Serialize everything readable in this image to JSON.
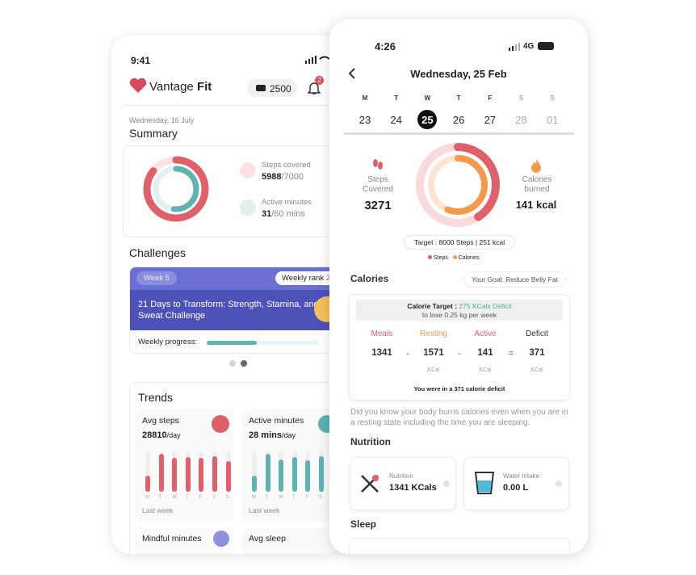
{
  "left": {
    "status_time": "9:41",
    "brand": {
      "name": "Vantage",
      "bold": "Fit"
    },
    "coins": "2500",
    "notifications": "2",
    "date": "Wednesday, 16 July",
    "summary_title": "Summary",
    "steps_label": "Steps covered",
    "steps_value": 5988,
    "steps_goal": {
      "value": 7000,
      "label": "/7000"
    },
    "active_label": "Active minutes",
    "active_value": 31,
    "active_goal": {
      "value": 60,
      "label": "/60 mins"
    },
    "challenges_title": "Challenges",
    "week": "Week 5",
    "rank_label": "Weekly rank",
    "rank_value": "2",
    "challenge_title": "21 Days to Transform: Strength, Stamina, and Sweat Challenge",
    "progress_label": "Weekly progress:",
    "progress": 45,
    "trends_title": "Trends",
    "trends": [
      {
        "title": "Avg steps",
        "value": "28810",
        "unit": "/day",
        "color": "#e0606a",
        "days": [
          "M",
          "T",
          "W",
          "T",
          "F",
          "S",
          "S"
        ],
        "bars": [
          40,
          94,
          84,
          86,
          84,
          88,
          76
        ],
        "period": "Last week"
      },
      {
        "title": "Active minutes",
        "value": "28 mins",
        "unit": "/day",
        "color": "#5fb3b0",
        "days": [
          "M",
          "T",
          "W",
          "T",
          "F",
          "S",
          "S"
        ],
        "bars": [
          40,
          94,
          80,
          86,
          78,
          88,
          76
        ],
        "period": "Last week"
      }
    ],
    "more": [
      "Mindful minutes",
      "Avg sleep"
    ]
  },
  "right": {
    "status_time": "4:26",
    "network": "4G",
    "date": "Wednesday, 25 Feb",
    "week": {
      "letters": [
        "M",
        "T",
        "W",
        "T",
        "F",
        "S",
        "S"
      ],
      "days": [
        "23",
        "24",
        "25",
        "26",
        "27",
        "28",
        "01"
      ],
      "selected": 2
    },
    "ring": {
      "steps_label": "Steps Covered",
      "steps": 3271,
      "steps_target": 8000,
      "calories_label": "Calories burned",
      "calories": "141 kcal",
      "calories_value": 141,
      "calories_target": 251,
      "target_text": "Target : 8000 Steps | 251 kcal",
      "legend": [
        "Steps",
        "Calories"
      ]
    },
    "calories": {
      "title": "Calories",
      "goal": "Your Goal: Reduce Belly Fat",
      "target_label": "Calorie Target :",
      "target_value": "275 KCals Deficit",
      "target_note": "to lose 0.25 kg per week",
      "columns": [
        {
          "name": "Meals",
          "value": 1341
        },
        {
          "name": "Resting",
          "value": 1571,
          "unit": "KCal"
        },
        {
          "name": "Active",
          "value": 141,
          "unit": "KCal"
        },
        {
          "name": "Deficit",
          "value": 371,
          "unit": "KCal"
        }
      ],
      "operators": [
        "-",
        "-",
        "="
      ],
      "summary": "You were in a 371 calorie deficit",
      "fact": "Did you know your body burns calories even when you are in a resting state including the time you are sleeping."
    },
    "nutrition": {
      "title": "Nutrition",
      "cards": [
        {
          "label": "Nutrition",
          "value": "1341 KCals"
        },
        {
          "label": "Water Intake",
          "value": "0.00 L"
        }
      ]
    },
    "sleep_title": "Sleep"
  }
}
